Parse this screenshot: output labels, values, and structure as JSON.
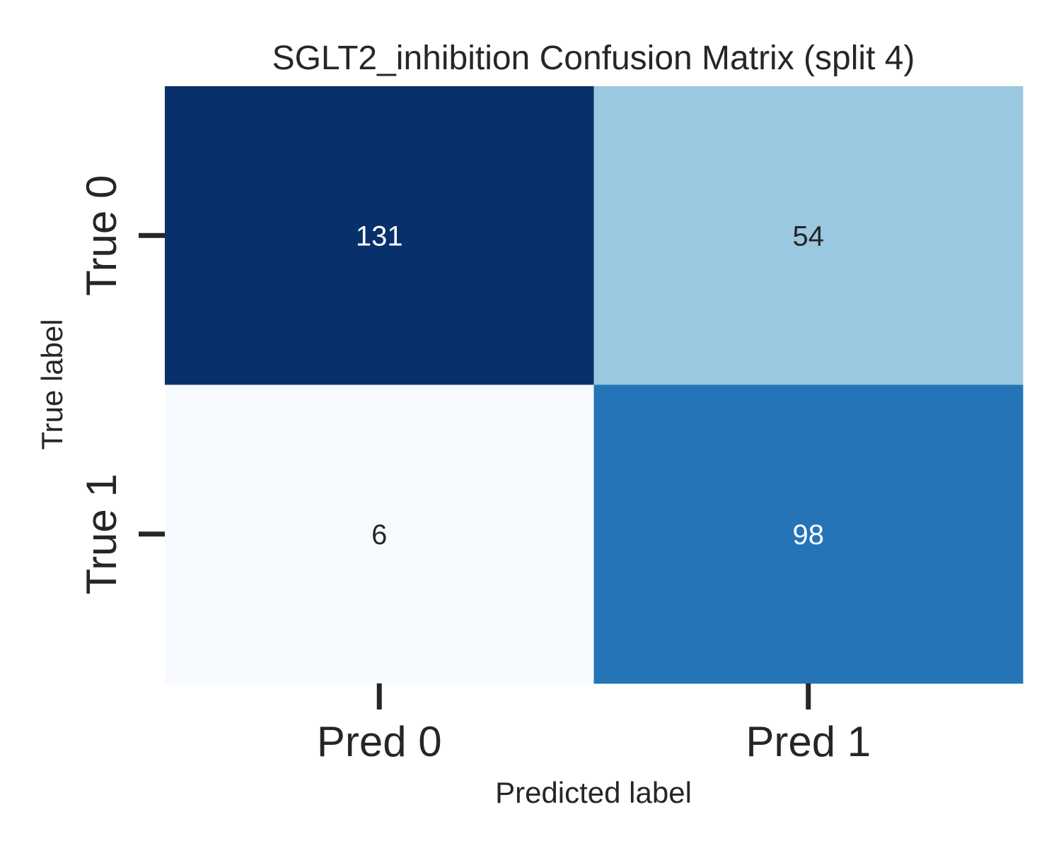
{
  "chart_data": {
    "type": "heatmap",
    "title": "SGLT2_inhibition Confusion Matrix (split 4)",
    "xlabel": "Predicted label",
    "ylabel": "True label",
    "x_categories": [
      "Pred 0",
      "Pred 1"
    ],
    "y_categories": [
      "True 0",
      "True 1"
    ],
    "values": [
      [
        131,
        54
      ],
      [
        6,
        98
      ]
    ],
    "colormap": "Blues",
    "colorbar": false,
    "cell_colors": [
      [
        "#08306b",
        "#9ac8e0"
      ],
      [
        "#f7fbff",
        "#2474b7"
      ]
    ],
    "annotation_colors": [
      [
        "#ffffff",
        "#262626"
      ],
      [
        "#262626",
        "#ffffff"
      ]
    ]
  }
}
